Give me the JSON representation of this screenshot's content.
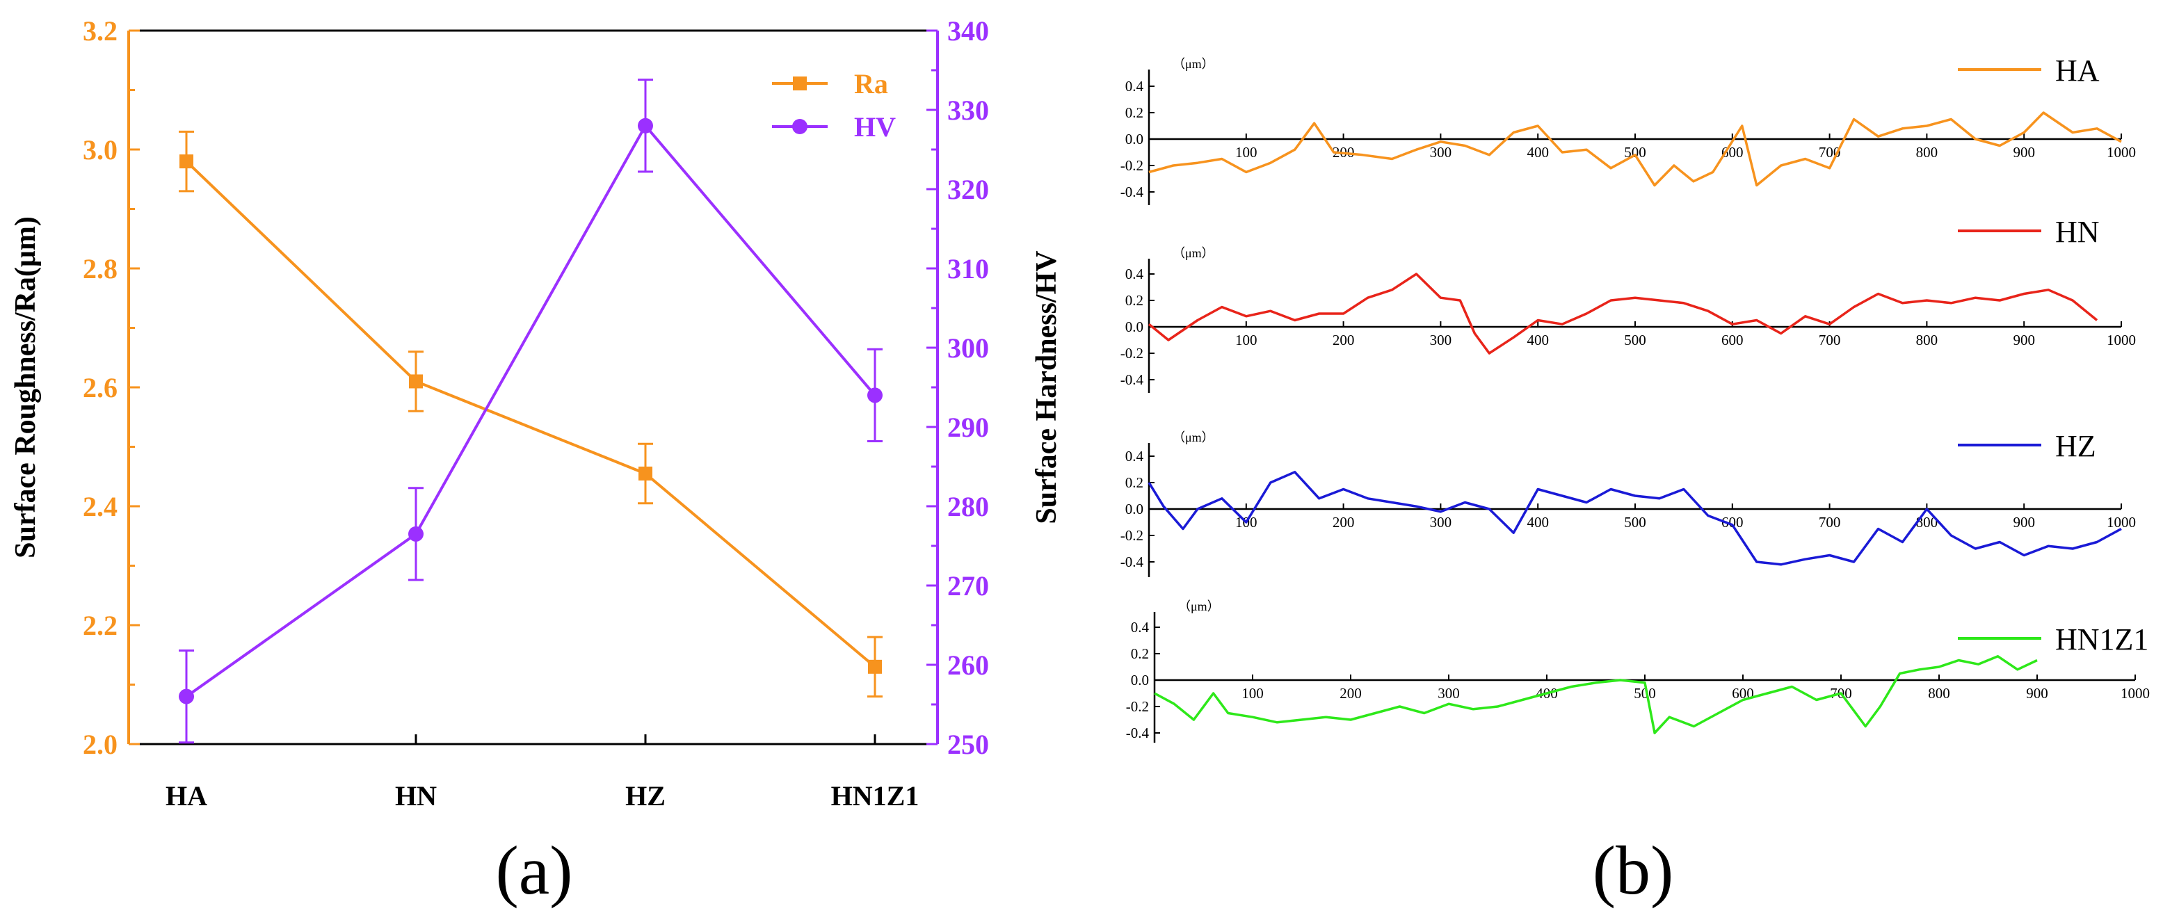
{
  "chart_data": [
    {
      "type": "line",
      "panel_label": "(a)",
      "categories": [
        "HA",
        "HN",
        "HZ",
        "HN1Z1"
      ],
      "yaxis_left": {
        "label": "Surface Roughness/Ra(μm)",
        "range": [
          2.0,
          3.2
        ],
        "ticks": [
          "2.0",
          "2.2",
          "2.4",
          "2.6",
          "2.8",
          "3.0",
          "3.2"
        ],
        "color": "#f7931e"
      },
      "yaxis_right": {
        "label": "Surface Hardness/HV",
        "range": [
          250,
          340
        ],
        "ticks": [
          "250",
          "260",
          "270",
          "280",
          "290",
          "300",
          "310",
          "320",
          "330",
          "340"
        ],
        "color": "#9b30ff"
      },
      "series": [
        {
          "name": "Ra",
          "axis": "left",
          "marker": "square",
          "color": "#f7931e",
          "values": [
            2.98,
            2.61,
            2.455,
            2.13
          ],
          "errors": [
            0.05,
            0.05,
            0.05,
            0.05
          ]
        },
        {
          "name": "HV",
          "axis": "right",
          "marker": "circle",
          "color": "#9b30ff",
          "values": [
            256,
            276.5,
            328,
            294
          ],
          "errors": [
            5.8,
            5.8,
            5.8,
            5.8
          ]
        }
      ]
    },
    {
      "type": "line",
      "panel_label": "(b)",
      "unit_label": "（μm）",
      "x_ticks": [
        "100",
        "200",
        "300",
        "400",
        "500",
        "600",
        "700",
        "800",
        "900",
        "1000"
      ],
      "y_ticks": [
        "0.4",
        "0.2",
        "0.0",
        "-0.2",
        "-0.4"
      ],
      "x_range": [
        0,
        1000
      ],
      "y_range": [
        -0.5,
        0.5
      ],
      "profiles": [
        {
          "name": "HA",
          "color": "#f7931e",
          "x": [
            0,
            25,
            50,
            75,
            100,
            125,
            150,
            170,
            190,
            220,
            250,
            275,
            300,
            325,
            350,
            375,
            400,
            425,
            450,
            475,
            500,
            520,
            540,
            560,
            580,
            610,
            625,
            650,
            675,
            700,
            725,
            750,
            775,
            800,
            825,
            850,
            875,
            900,
            920,
            950,
            975,
            1000
          ],
          "y": [
            -0.25,
            -0.2,
            -0.18,
            -0.15,
            -0.25,
            -0.18,
            -0.08,
            0.12,
            -0.1,
            -0.12,
            -0.15,
            -0.08,
            -0.02,
            -0.05,
            -0.12,
            0.05,
            0.1,
            -0.1,
            -0.08,
            -0.22,
            -0.12,
            -0.35,
            -0.2,
            -0.32,
            -0.25,
            0.1,
            -0.35,
            -0.2,
            -0.15,
            -0.22,
            0.15,
            0.02,
            0.08,
            0.1,
            0.15,
            0.0,
            -0.05,
            0.05,
            0.2,
            0.05,
            0.08,
            -0.02
          ]
        },
        {
          "name": "HN",
          "color": "#e8241a",
          "x": [
            0,
            20,
            50,
            75,
            100,
            125,
            150,
            175,
            200,
            225,
            250,
            275,
            300,
            320,
            335,
            350,
            375,
            400,
            425,
            450,
            475,
            500,
            525,
            550,
            575,
            600,
            625,
            650,
            675,
            700,
            725,
            750,
            775,
            800,
            825,
            850,
            875,
            900,
            925,
            950,
            975
          ],
          "y": [
            0.02,
            -0.1,
            0.05,
            0.15,
            0.08,
            0.12,
            0.05,
            0.1,
            0.1,
            0.22,
            0.28,
            0.4,
            0.22,
            0.2,
            -0.05,
            -0.2,
            -0.08,
            0.05,
            0.02,
            0.1,
            0.2,
            0.22,
            0.2,
            0.18,
            0.12,
            0.02,
            0.05,
            -0.05,
            0.08,
            0.02,
            0.15,
            0.25,
            0.18,
            0.2,
            0.18,
            0.22,
            0.2,
            0.25,
            0.28,
            0.2,
            0.05
          ]
        },
        {
          "name": "HZ",
          "color": "#1a1ad6",
          "x": [
            0,
            15,
            35,
            50,
            75,
            100,
            125,
            150,
            175,
            200,
            225,
            250,
            275,
            300,
            325,
            350,
            375,
            400,
            425,
            450,
            475,
            500,
            525,
            550,
            575,
            600,
            625,
            650,
            675,
            700,
            725,
            750,
            775,
            800,
            825,
            850,
            875,
            900,
            925,
            950,
            975,
            1000
          ],
          "y": [
            0.2,
            0.02,
            -0.15,
            0.0,
            0.08,
            -0.1,
            0.2,
            0.28,
            0.08,
            0.15,
            0.08,
            0.05,
            0.02,
            -0.02,
            0.05,
            0.0,
            -0.18,
            0.15,
            0.1,
            0.05,
            0.15,
            0.1,
            0.08,
            0.15,
            -0.05,
            -0.12,
            -0.4,
            -0.42,
            -0.38,
            -0.35,
            -0.4,
            -0.15,
            -0.25,
            0.0,
            -0.2,
            -0.3,
            -0.25,
            -0.35,
            -0.28,
            -0.3,
            -0.25,
            -0.15
          ]
        },
        {
          "name": "HN1Z1",
          "color": "#2ee81a",
          "x": [
            0,
            20,
            40,
            60,
            75,
            100,
            125,
            150,
            175,
            200,
            225,
            250,
            275,
            300,
            325,
            350,
            375,
            400,
            425,
            450,
            475,
            500,
            510,
            525,
            550,
            575,
            600,
            625,
            650,
            675,
            700,
            725,
            740,
            760,
            780,
            800,
            820,
            840,
            860,
            880,
            900
          ],
          "y": [
            -0.1,
            -0.18,
            -0.3,
            -0.1,
            -0.25,
            -0.28,
            -0.32,
            -0.3,
            -0.28,
            -0.3,
            -0.25,
            -0.2,
            -0.25,
            -0.18,
            -0.22,
            -0.2,
            -0.15,
            -0.1,
            -0.05,
            -0.02,
            0.0,
            -0.02,
            -0.4,
            -0.28,
            -0.35,
            -0.25,
            -0.15,
            -0.1,
            -0.05,
            -0.15,
            -0.1,
            -0.35,
            -0.2,
            0.05,
            0.08,
            0.1,
            0.15,
            0.12,
            0.18,
            0.08,
            0.15
          ]
        }
      ]
    }
  ]
}
